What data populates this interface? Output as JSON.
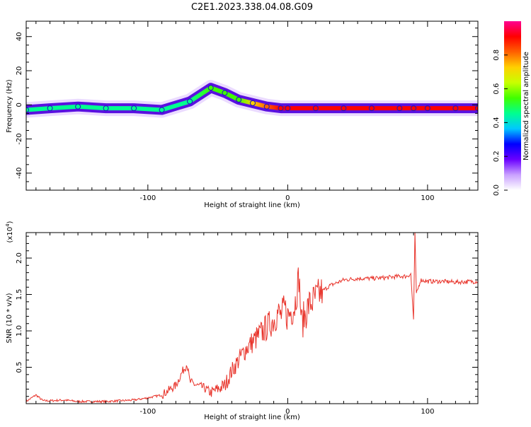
{
  "title": "C2E1.2023.338.04.08.G09",
  "chart_data": [
    {
      "type": "heatmap",
      "xlabel": "Height of straight line (km)",
      "ylabel": "Frequency (Hz)",
      "xlim": [
        -187,
        136
      ],
      "ylim": [
        -50,
        49
      ],
      "xticks": [
        -100,
        0,
        100
      ],
      "yticks": [
        -40,
        -20,
        0,
        20,
        40
      ],
      "colorbar": {
        "label": "Normalized spectral amplitude",
        "range": [
          0,
          1
        ],
        "ticks": [
          0.0,
          0.2,
          0.4,
          0.6,
          0.8
        ],
        "tick_labels": [
          "0.0",
          "0.2",
          "0.4",
          "0.6",
          "0.8"
        ],
        "colors": [
          "#ffffff",
          "#c9a0ff",
          "#6a00ff",
          "#0000ff",
          "#00c8ff",
          "#00ff90",
          "#40ff00",
          "#c8ff00",
          "#ffd000",
          "#ff6000",
          "#ff0000",
          "#ff0090"
        ]
      },
      "ridge": {
        "x": [
          -187,
          -170,
          -150,
          -130,
          -110,
          -90,
          -70,
          -55,
          -45,
          -35,
          -25,
          -15,
          -5,
          0,
          20,
          40,
          60,
          80,
          90,
          100,
          120,
          136
        ],
        "freq": [
          -3,
          -2,
          -1,
          -2,
          -2,
          -3,
          2,
          10,
          7,
          3,
          1,
          -1,
          -2,
          -2,
          -2,
          -2,
          -2,
          -2,
          -2,
          -2,
          -2,
          -2
        ],
        "amplitude": [
          0.45,
          0.45,
          0.45,
          0.45,
          0.45,
          0.45,
          0.45,
          0.5,
          0.5,
          0.55,
          0.7,
          0.85,
          0.9,
          0.95,
          0.95,
          0.95,
          0.95,
          0.95,
          0.95,
          0.95,
          0.95,
          0.95
        ]
      }
    },
    {
      "type": "line",
      "xlabel": "Height of straight line (km)",
      "ylabel": "SNR (10 * v/v)",
      "y_multiplier": "(x10^4)",
      "xlim": [
        -187,
        136
      ],
      "ylim": [
        0,
        2.35
      ],
      "xticks": [
        -100,
        0,
        100
      ],
      "yticks": [
        0.5,
        1.0,
        1.5,
        2.0
      ],
      "color": "#e8332a",
      "series": [
        {
          "x": [
            -187,
            -180,
            -175,
            -170,
            -160,
            -150,
            -140,
            -130,
            -120,
            -110,
            -100,
            -90,
            -80,
            -75,
            -72,
            -70,
            -65,
            -60,
            -55,
            -50,
            -45,
            -40,
            -35,
            -30,
            -25,
            -20,
            -15,
            -10,
            -7,
            -5,
            -2,
            0,
            5,
            8,
            10,
            15,
            20,
            25,
            30,
            40,
            50,
            60,
            70,
            80,
            85,
            88,
            90,
            91,
            92,
            95,
            100,
            110,
            120,
            136
          ],
          "values": [
            0.03,
            0.12,
            0.04,
            0.04,
            0.05,
            0.03,
            0.03,
            0.03,
            0.04,
            0.05,
            0.08,
            0.12,
            0.25,
            0.45,
            0.55,
            0.3,
            0.25,
            0.22,
            0.15,
            0.2,
            0.25,
            0.45,
            0.6,
            0.75,
            0.85,
            0.95,
            1.05,
            1.15,
            1.25,
            1.2,
            1.3,
            1.2,
            1.35,
            1.75,
            1.1,
            1.35,
            1.45,
            1.55,
            1.62,
            1.7,
            1.72,
            1.72,
            1.73,
            1.75,
            1.75,
            1.78,
            1.15,
            2.33,
            1.5,
            1.7,
            1.68,
            1.68,
            1.67,
            1.68
          ]
        }
      ]
    }
  ]
}
